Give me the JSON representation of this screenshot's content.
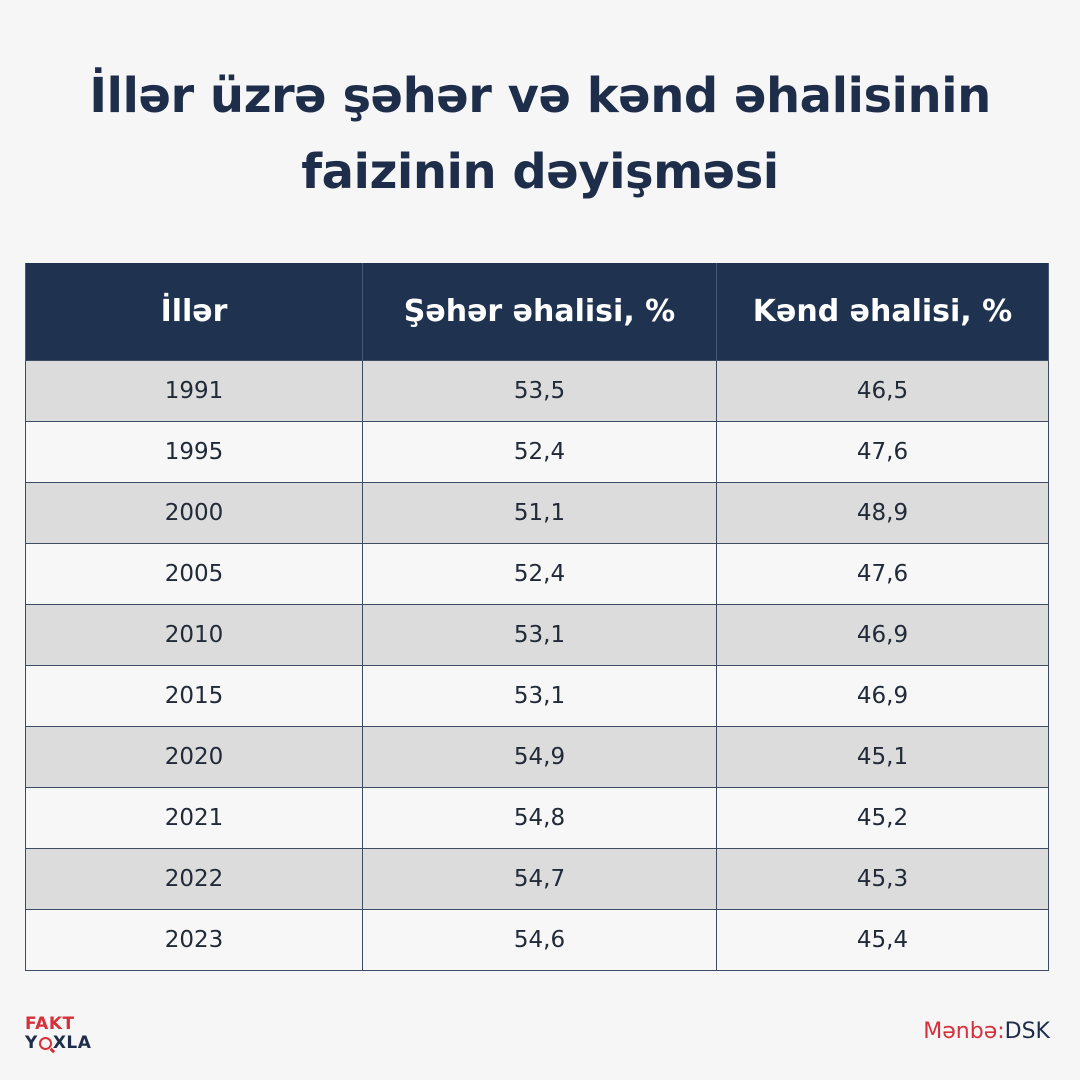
{
  "title": {
    "line1": "İllər üzrə şəhər və kənd əhalisinin",
    "line2": "faizinin dəyişməsi"
  },
  "table": {
    "headers": [
      "İllər",
      "Şəhər əhalisi, %",
      "Kənd əhalisi, %"
    ],
    "rows": [
      [
        "1991",
        "53,5",
        "46,5"
      ],
      [
        "1995",
        "52,4",
        "47,6"
      ],
      [
        "2000",
        "51,1",
        "48,9"
      ],
      [
        "2005",
        "52,4",
        "47,6"
      ],
      [
        "2010",
        "53,1",
        "46,9"
      ],
      [
        "2015",
        "53,1",
        "46,9"
      ],
      [
        "2020",
        "54,9",
        "45,1"
      ],
      [
        "2021",
        "54,8",
        "45,2"
      ],
      [
        "2022",
        "54,7",
        "45,3"
      ],
      [
        "2023",
        "54,6",
        "45,4"
      ]
    ]
  },
  "logo": {
    "line1": "FAKT",
    "line2_part1": "Y",
    "line2_part2": "XLA"
  },
  "source": {
    "label": "Mənbə:",
    "value": "DSK"
  },
  "colors": {
    "header_bg": "#1f324f",
    "title_text": "#1e2e4a",
    "accent_red": "#d7303a",
    "row_shaded": "#dcdcdc",
    "row_plain": "#f7f7f7"
  }
}
